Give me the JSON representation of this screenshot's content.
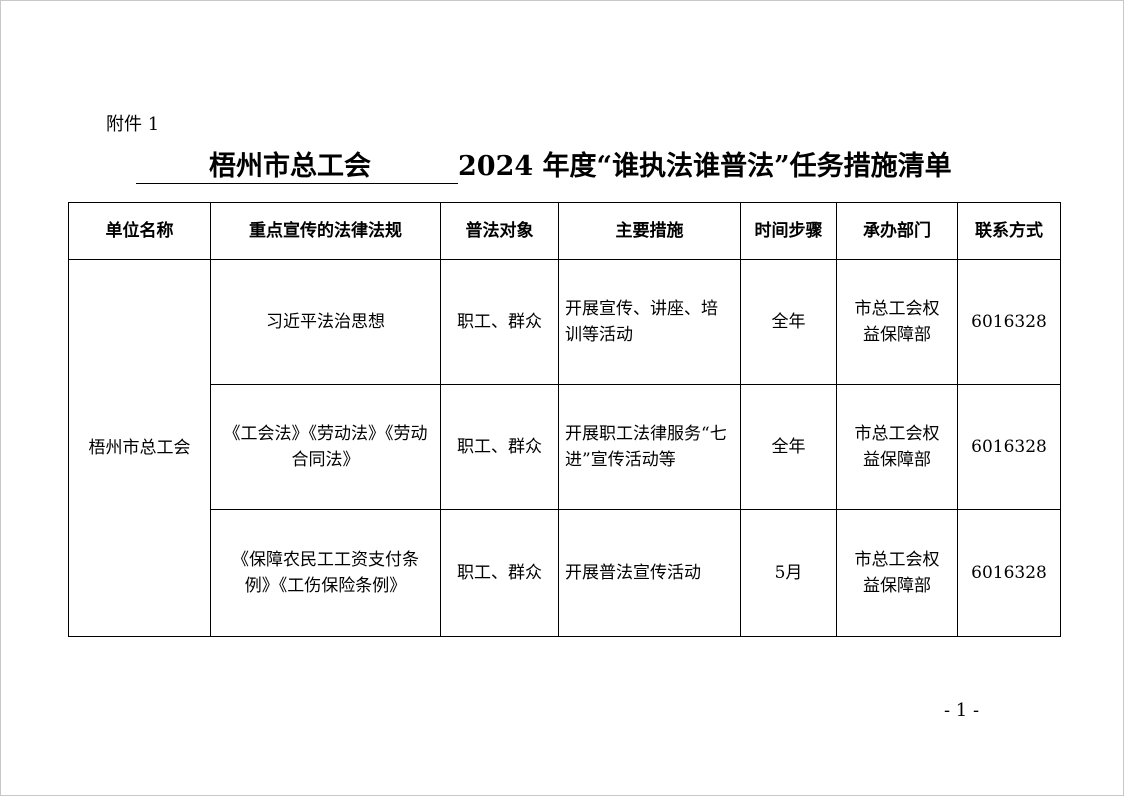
{
  "attachment_label": "附件 1",
  "title": {
    "unit": "梧州市总工会",
    "rest": "2024 年度“谁执法谁普法”任务措施清单"
  },
  "table": {
    "headers": [
      "单位名称",
      "重点宣传的法律法规",
      "普法对象",
      "主要措施",
      "时间步骤",
      "承办部门",
      "联系方式"
    ],
    "unit_name": "梧州市总工会",
    "rows": [
      {
        "law": "习近平法治思想",
        "target": "职工、群众",
        "measure": "开展宣传、讲座、培训等活动",
        "time": "全年",
        "dept": "市总工会权益保障部",
        "contact": "6016328"
      },
      {
        "law": "《工会法》《劳动法》《劳动合同法》",
        "target": "职工、群众",
        "measure": "开展职工法律服务“七进”宣传活动等",
        "time": "全年",
        "dept": "市总工会权益保障部",
        "contact": "6016328"
      },
      {
        "law": "《保障农民工工资支付条例》《工伤保险条例》",
        "target": "职工、群众",
        "measure": "开展普法宣传活动",
        "time": "5月",
        "dept": "市总工会权益保障部",
        "contact": "6016328"
      }
    ]
  },
  "page_number": "- 1 -"
}
